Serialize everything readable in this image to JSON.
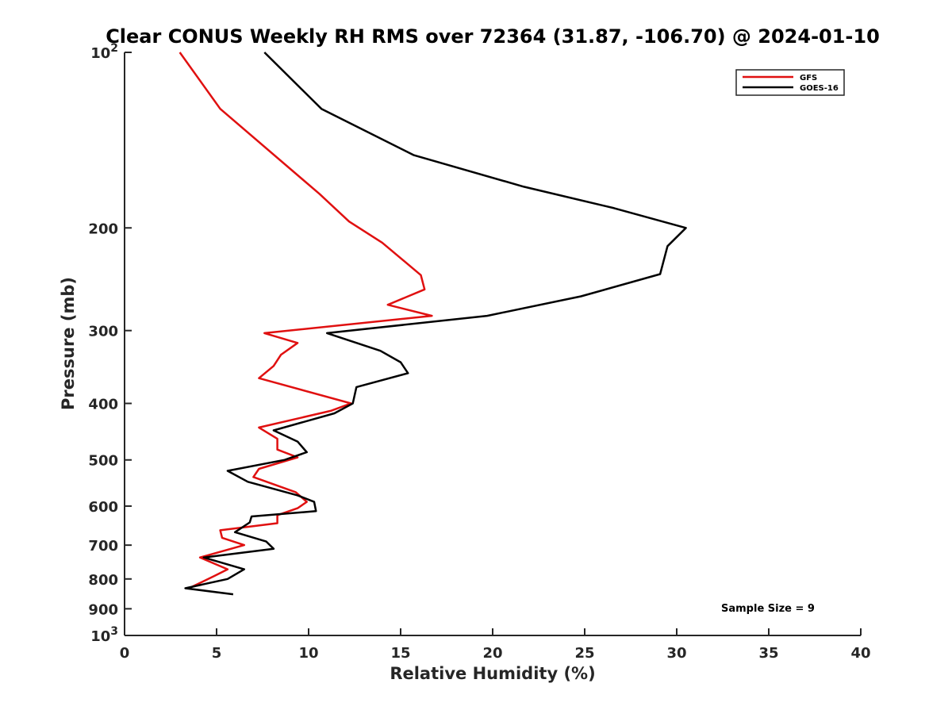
{
  "chart_data": {
    "type": "line",
    "title": "Clear CONUS Weekly RH RMS over 72364 (31.87, -106.70) @ 2024-01-10",
    "xlabel": "Relative Humidity (%)",
    "ylabel": "Pressure (mb)",
    "xlim": [
      0,
      40
    ],
    "ylim": [
      100,
      1000
    ],
    "y_scale": "log",
    "y_reversed": true,
    "grid": false,
    "x_ticks": [
      0,
      5,
      10,
      15,
      20,
      25,
      30,
      35,
      40
    ],
    "x_tick_labels": [
      "0",
      "5",
      "10",
      "15",
      "20",
      "25",
      "30",
      "35",
      "40"
    ],
    "y_ticks": [
      200,
      300,
      400,
      500,
      600,
      700,
      800,
      900
    ],
    "y_tick_labels": [
      "200",
      "300",
      "400",
      "500",
      "600",
      "700",
      "800",
      "900"
    ],
    "y_extreme_ticks": [
      {
        "value": 100,
        "base": "10",
        "exp": "2"
      },
      {
        "value": 1000,
        "base": "10",
        "exp": "3"
      }
    ],
    "legend_position": "top-right",
    "annotation": "Sample Size = 9",
    "series": [
      {
        "name": "GFS",
        "color": "#e01010",
        "points": [
          [
            3.0,
            100
          ],
          [
            5.2,
            125
          ],
          [
            10.6,
            175
          ],
          [
            12.2,
            195
          ],
          [
            14.0,
            212
          ],
          [
            16.1,
            241
          ],
          [
            16.3,
            255
          ],
          [
            14.3,
            271
          ],
          [
            16.7,
            283
          ],
          [
            7.6,
            303
          ],
          [
            9.4,
            315
          ],
          [
            8.5,
            330
          ],
          [
            8.1,
            345
          ],
          [
            7.3,
            362
          ],
          [
            12.3,
            400
          ],
          [
            11.2,
            412
          ],
          [
            7.3,
            440
          ],
          [
            8.3,
            460
          ],
          [
            8.3,
            480
          ],
          [
            9.4,
            495
          ],
          [
            7.3,
            518
          ],
          [
            7.0,
            535
          ],
          [
            9.3,
            568
          ],
          [
            9.9,
            590
          ],
          [
            9.4,
            605
          ],
          [
            8.3,
            622
          ],
          [
            8.3,
            642
          ],
          [
            5.2,
            660
          ],
          [
            5.3,
            680
          ],
          [
            6.5,
            700
          ],
          [
            4.1,
            735
          ],
          [
            5.6,
            770
          ],
          [
            4.9,
            790
          ],
          [
            3.5,
            830
          ]
        ]
      },
      {
        "name": "GOES-16",
        "color": "#000000",
        "points": [
          [
            7.6,
            100
          ],
          [
            10.7,
            125
          ],
          [
            15.7,
            150
          ],
          [
            21.7,
            170
          ],
          [
            26.6,
            185
          ],
          [
            30.5,
            200
          ],
          [
            29.5,
            215
          ],
          [
            29.1,
            240
          ],
          [
            24.8,
            262
          ],
          [
            19.7,
            283
          ],
          [
            11.0,
            303
          ],
          [
            13.9,
            325
          ],
          [
            15.0,
            340
          ],
          [
            15.4,
            355
          ],
          [
            12.6,
            375
          ],
          [
            12.4,
            400
          ],
          [
            11.4,
            416
          ],
          [
            8.1,
            445
          ],
          [
            9.4,
            465
          ],
          [
            9.9,
            485
          ],
          [
            8.7,
            500
          ],
          [
            5.6,
            522
          ],
          [
            6.7,
            545
          ],
          [
            9.4,
            575
          ],
          [
            10.3,
            590
          ],
          [
            10.4,
            612
          ],
          [
            6.9,
            625
          ],
          [
            6.8,
            640
          ],
          [
            6.0,
            665
          ],
          [
            7.7,
            690
          ],
          [
            8.1,
            710
          ],
          [
            4.3,
            735
          ],
          [
            6.5,
            770
          ],
          [
            5.6,
            800
          ],
          [
            3.3,
            830
          ],
          [
            5.9,
            850
          ]
        ]
      }
    ]
  }
}
